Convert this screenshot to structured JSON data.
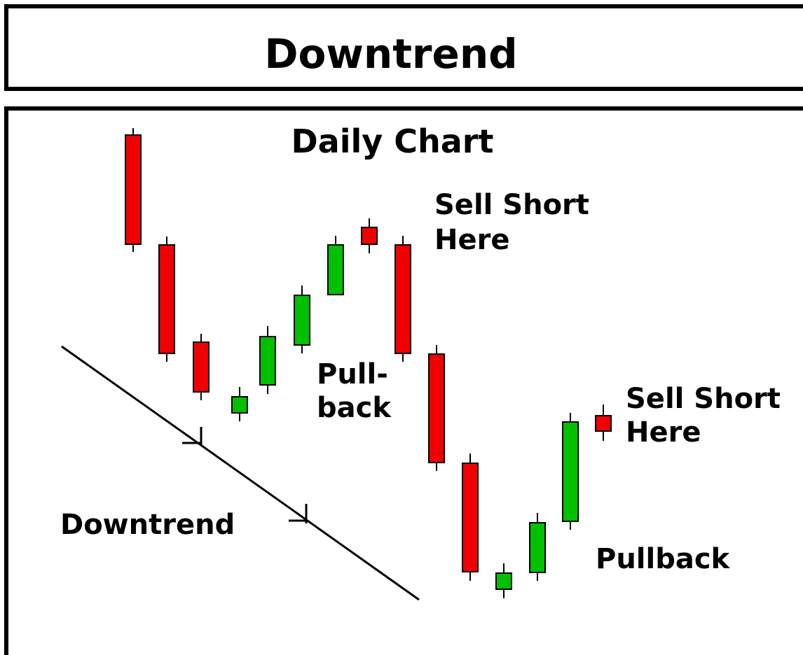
{
  "header": {
    "title": "Downtrend"
  },
  "panel": {
    "title": "Daily Chart",
    "annotations": [
      {
        "lines": [
          "Sell Short",
          "Here"
        ]
      },
      {
        "lines": [
          "Pull-",
          "back"
        ]
      },
      {
        "lines": [
          "Sell Short",
          "Here"
        ]
      },
      {
        "lines": [
          "Pullback"
        ]
      },
      {
        "lines": [
          "Downtrend"
        ]
      }
    ]
  }
}
